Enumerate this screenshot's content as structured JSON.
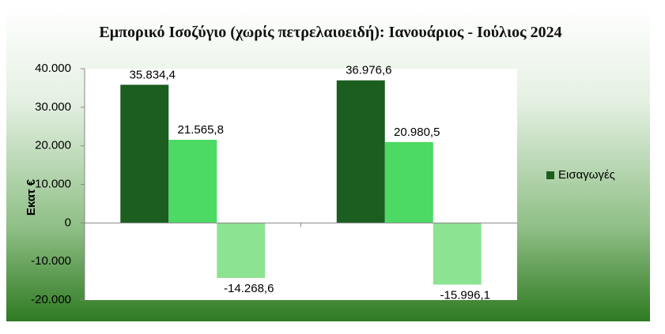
{
  "chart_data": {
    "type": "bar",
    "title": "Εμπορικό Ισοζύγιο (χωρίς πετρελαιοειδή): Ιανουάριος - Ιούλιος 2024",
    "y_label": "Εκατ €",
    "categories": [
      null,
      null
    ],
    "series": [
      {
        "name": "Εισαγωγές",
        "color": "#1b5e20",
        "values": [
          35834.4,
          36976.6
        ],
        "value_labels": [
          "35.834,4",
          "36.976,6"
        ]
      },
      {
        "color": "#4cd964",
        "values": [
          21565.8,
          20980.5
        ],
        "value_labels": [
          "21.565,8",
          "20.980,5"
        ]
      },
      {
        "color": "#8ce391",
        "values": [
          -14268.6,
          -15996.1
        ],
        "value_labels": [
          "-14.268,6",
          "-15.996,1"
        ]
      }
    ],
    "ylim": [
      -20000,
      40000
    ],
    "yticks": [
      {
        "value": -20000,
        "label": "-20.000"
      },
      {
        "value": -10000,
        "label": "-10.000"
      },
      0,
      {
        "value": 10000,
        "label": "10.000"
      },
      {
        "value": 20000,
        "label": "20.000"
      },
      {
        "value": 30000,
        "label": "30.000"
      },
      {
        "value": 40000,
        "label": "40.000"
      }
    ],
    "legend": "right"
  }
}
